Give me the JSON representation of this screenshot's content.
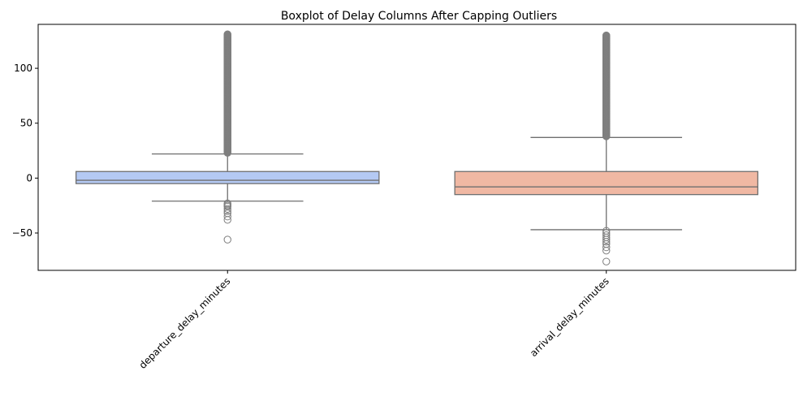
{
  "chart_data": {
    "type": "boxplot",
    "title": "Boxplot of Delay Columns After Capping Outliers",
    "xlabel": "",
    "ylabel": "",
    "ylim": [
      -84,
      140
    ],
    "yticks": [
      -50,
      0,
      50,
      100
    ],
    "categories": [
      "departure_delay_minutes",
      "arrival_delay_minutes"
    ],
    "grid": false,
    "boxes": [
      {
        "category": "departure_delay_minutes",
        "color": "#b4c9f3",
        "whisker_low": -21,
        "q1": -5,
        "median": -2,
        "q3": 6,
        "whisker_high": 22,
        "outliers_high_range": [
          23,
          131
        ],
        "outliers_low": [
          -23,
          -24,
          -25,
          -26,
          -28,
          -30,
          -32,
          -35,
          -38,
          -56
        ]
      },
      {
        "category": "arrival_delay_minutes",
        "color": "#f0b8a3",
        "whisker_low": -47,
        "q1": -15,
        "median": -8,
        "q3": 6,
        "whisker_high": 37,
        "outliers_high_range": [
          38,
          130
        ],
        "outliers_low": [
          -48,
          -50,
          -52,
          -54,
          -56,
          -58,
          -60,
          -63,
          -66,
          -76
        ]
      }
    ]
  }
}
